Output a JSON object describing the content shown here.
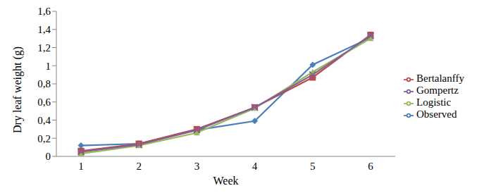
{
  "chart_data": {
    "type": "line",
    "x_label": "Week",
    "y_label": "Dry leaf weight (g)",
    "categories": [
      "1",
      "2",
      "3",
      "4",
      "5",
      "6"
    ],
    "series": [
      {
        "name": "Observed",
        "color": "#4a7ebb",
        "marker": "diamond",
        "values": [
          0.12,
          0.14,
          0.29,
          0.39,
          1.01,
          1.31
        ]
      },
      {
        "name": "Bertalanffy",
        "color": "#be4b48",
        "marker": "square",
        "values": [
          0.06,
          0.14,
          0.3,
          0.54,
          0.87,
          1.34
        ]
      },
      {
        "name": "Logistic",
        "color": "#98b954",
        "marker": "triangle",
        "values": [
          0.03,
          0.12,
          0.26,
          0.53,
          0.93,
          1.3
        ]
      },
      {
        "name": "Gompertz",
        "color": "#7d60a0",
        "marker": "cross",
        "values": [
          0.05,
          0.13,
          0.29,
          0.54,
          0.9,
          1.33
        ]
      }
    ],
    "ylim": [
      0,
      1.6
    ],
    "yticks": [
      0,
      {
        "value": 0.2,
        "label": "0,2"
      },
      {
        "value": 0.4,
        "label": "0,4"
      },
      {
        "value": 0.6,
        "label": "0,6"
      },
      {
        "value": 0.8,
        "label": "0,8"
      },
      1,
      {
        "value": 1.2,
        "label": "1,2"
      },
      {
        "value": 1.4,
        "label": "1,4"
      },
      {
        "value": 1.6,
        "label": "1,6"
      }
    ],
    "grid": false,
    "legend": "right"
  }
}
